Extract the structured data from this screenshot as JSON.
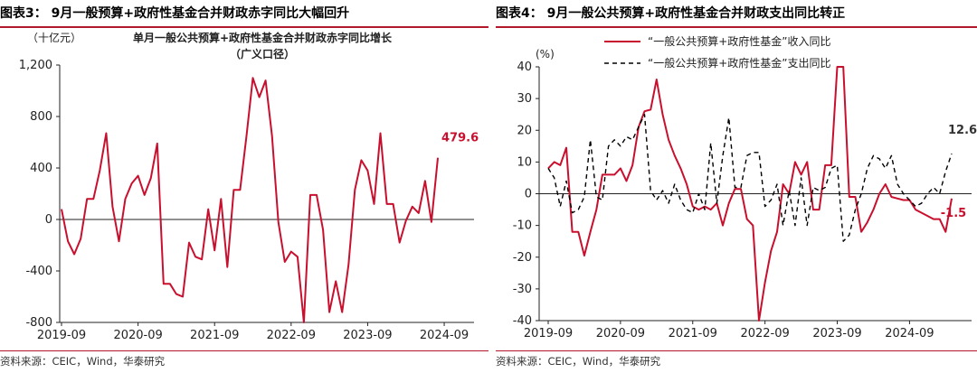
{
  "colors": {
    "accent": "#b2182b",
    "series_red": "#c8102e",
    "series_black": "#000000",
    "axis": "#222222"
  },
  "panel_left": {
    "title": "图表3： 9月一般预算+政府性基金合并财政赤字同比大幅回升",
    "source": "资料来源：CEIC，Wind，华泰研究"
  },
  "panel_right": {
    "title": "图表4： 9月一般公共预算+政府性基金合并财政支出同比转正",
    "source": "资料来源：CEIC，Wind，华泰研究"
  },
  "chart_data": [
    {
      "type": "line",
      "unit_label": "（十亿元）",
      "title": "单月一般公共预算+政府性基金合并财政赤字同比增长",
      "subtitle": "（广义口径）",
      "xlabel": "",
      "ylabel": "",
      "ylim": [
        -800,
        1200
      ],
      "yticks": [
        1200,
        800,
        400,
        0,
        -400,
        -800
      ],
      "ytick_labels": [
        "1,200",
        "800",
        "400",
        "0",
        "-400",
        "-800"
      ],
      "x_tick_labels": [
        "2019-09",
        "2020-09",
        "2021-09",
        "2022-09",
        "2023-09",
        "2024-09"
      ],
      "x_start": "2019-09",
      "legend": "none",
      "series": [
        {
          "name": "赤字同比增长",
          "color": "#c8102e",
          "values": [
            80,
            -170,
            -270,
            -150,
            160,
            160,
            380,
            670,
            100,
            -170,
            160,
            280,
            340,
            190,
            320,
            590,
            -500,
            -500,
            -580,
            -600,
            -180,
            -290,
            -310,
            80,
            -240,
            160,
            -370,
            230,
            230,
            650,
            1100,
            950,
            1080,
            650,
            -20,
            -330,
            -250,
            -290,
            -800,
            190,
            190,
            -80,
            -720,
            -480,
            -720,
            -350,
            230,
            460,
            380,
            120,
            670,
            120,
            120,
            -180,
            -10,
            100,
            50,
            300,
            -20,
            479.6
          ],
          "last_label": "479.6"
        }
      ]
    },
    {
      "type": "line",
      "unit_label": "(%)",
      "title": "",
      "xlabel": "",
      "ylabel": "",
      "ylim": [
        -40,
        40
      ],
      "yticks": [
        40,
        30,
        20,
        10,
        0,
        -10,
        -20,
        -30,
        -40
      ],
      "ytick_labels": [
        "40",
        "30",
        "20",
        "10",
        "0",
        "-10",
        "-20",
        "-30",
        "-40"
      ],
      "x_tick_labels": [
        "2019-09",
        "2020-09",
        "2021-09",
        "2022-09",
        "2023-09",
        "2024-09"
      ],
      "x_start": "2019-09",
      "legend": "top",
      "series": [
        {
          "name": "“一般公共预算+政府性基金”收入同比",
          "color": "#c8102e",
          "style": "solid",
          "values": [
            8,
            10,
            9,
            14.5,
            -12,
            -12,
            -19.5,
            -12,
            -5,
            6,
            6,
            6,
            8,
            4,
            9,
            21,
            26,
            26.5,
            36,
            25,
            17,
            12,
            8,
            3,
            -4,
            -5,
            -4,
            -5,
            -3,
            -10,
            -3,
            1.5,
            1.5,
            -8,
            -10,
            -40,
            -28,
            -18,
            -12,
            3,
            0,
            10,
            6,
            10,
            -5,
            -5,
            9,
            9,
            40,
            40,
            -1,
            -1,
            -12,
            -9,
            -5,
            0,
            3,
            -1,
            -1.5,
            -2,
            -2,
            -5,
            -6,
            -7,
            -8,
            -8,
            -12,
            -1.5
          ],
          "last_label": "-1.5"
        },
        {
          "name": "“一般公共预算+政府性基金”支出同比",
          "color": "#000000",
          "style": "dashed",
          "values": [
            8,
            5,
            -4,
            4,
            -6,
            -5,
            -1,
            17,
            -1,
            -2,
            15,
            17,
            15,
            18,
            17,
            21,
            25,
            1,
            -2,
            1,
            -3,
            3,
            -2,
            -5,
            -6,
            0,
            -5,
            16,
            -3,
            12,
            24,
            2,
            2,
            12,
            13,
            13,
            -4,
            -2,
            3,
            -10,
            1,
            -10,
            5,
            -10,
            2,
            1,
            2,
            8,
            9,
            -15,
            -13,
            -5,
            0,
            8,
            12,
            11,
            8,
            12,
            3,
            0,
            -2,
            -4,
            -3,
            0,
            2,
            0,
            7,
            12.6
          ],
          "last_label": "12.6"
        }
      ]
    }
  ]
}
